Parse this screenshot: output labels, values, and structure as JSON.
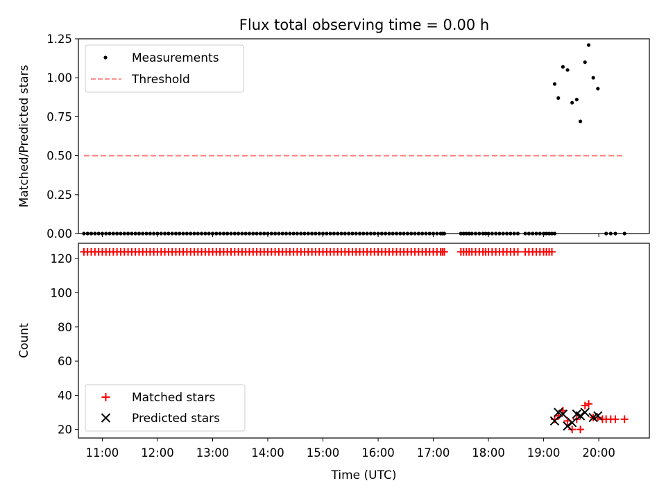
{
  "figure_title": "Flux total observing time = 0.00 h",
  "colors": {
    "measurement": "#000000",
    "threshold": "#ff7f7f",
    "matched": "#ff0000",
    "predicted": "#000000"
  },
  "chart_data": [
    {
      "type": "scatter",
      "title": "Flux total observing time = 0.00 h",
      "xlabel": "",
      "ylabel": "Matched/Predicted stars",
      "xlim": [
        "10:34",
        "20:55"
      ],
      "ylim": [
        0,
        1.25
      ],
      "yticks": [
        "0.00",
        "0.25",
        "0.50",
        "0.75",
        "1.00",
        "1.25"
      ],
      "legend_position": "top-left",
      "legend": [
        "Measurements",
        "Threshold"
      ],
      "threshold": {
        "name": "Threshold",
        "value": 0.5,
        "x_start": "10:40",
        "x_end": "20:28"
      },
      "series": [
        {
          "name": "Measurements",
          "zero_points": [
            "10:40",
            "10:44",
            "10:48",
            "10:52",
            "10:56",
            "11:00",
            "11:04",
            "11:08",
            "11:12",
            "11:16",
            "11:20",
            "11:24",
            "11:28",
            "11:32",
            "11:36",
            "11:40",
            "11:44",
            "11:48",
            "11:52",
            "11:56",
            "12:00",
            "12:04",
            "12:08",
            "12:12",
            "12:16",
            "12:20",
            "12:24",
            "12:28",
            "12:32",
            "12:36",
            "12:40",
            "12:44",
            "12:48",
            "12:52",
            "12:56",
            "13:00",
            "13:04",
            "13:08",
            "13:12",
            "13:16",
            "13:20",
            "13:24",
            "13:28",
            "13:32",
            "13:36",
            "13:40",
            "13:44",
            "13:48",
            "13:52",
            "13:56",
            "14:00",
            "14:04",
            "14:08",
            "14:12",
            "14:16",
            "14:20",
            "14:24",
            "14:28",
            "14:32",
            "14:36",
            "14:40",
            "14:44",
            "14:48",
            "14:52",
            "14:56",
            "15:00",
            "15:04",
            "15:08",
            "15:12",
            "15:16",
            "15:20",
            "15:24",
            "15:28",
            "15:32",
            "15:36",
            "15:40",
            "15:44",
            "15:48",
            "15:52",
            "15:56",
            "16:00",
            "16:04",
            "16:08",
            "16:12",
            "16:16",
            "16:20",
            "16:24",
            "16:28",
            "16:32",
            "16:36",
            "16:40",
            "16:44",
            "16:48",
            "16:52",
            "16:56",
            "17:00",
            "17:04",
            "17:08",
            "17:10",
            "17:12",
            "17:30",
            "17:33",
            "17:36",
            "17:39",
            "17:42",
            "17:46",
            "17:50",
            "17:54",
            "17:57",
            "18:00",
            "18:04",
            "18:08",
            "18:12",
            "18:16",
            "18:20",
            "18:24",
            "18:28",
            "18:32",
            "18:40",
            "18:44",
            "18:48",
            "18:52",
            "18:56",
            "19:00",
            "19:03",
            "19:06",
            "19:09",
            "19:12",
            "20:08",
            "20:13",
            "20:18",
            "20:28"
          ],
          "points": [
            {
              "x": "19:12",
              "y": 0.96
            },
            {
              "x": "19:16",
              "y": 0.87
            },
            {
              "x": "19:21",
              "y": 1.07
            },
            {
              "x": "19:26",
              "y": 1.05
            },
            {
              "x": "19:31",
              "y": 0.84
            },
            {
              "x": "19:36",
              "y": 0.86
            },
            {
              "x": "19:40",
              "y": 0.72
            },
            {
              "x": "19:45",
              "y": 1.1
            },
            {
              "x": "19:49",
              "y": 1.21
            },
            {
              "x": "19:54",
              "y": 1.0
            },
            {
              "x": "19:59",
              "y": 0.93
            }
          ]
        }
      ]
    },
    {
      "type": "scatter",
      "title": "",
      "xlabel": "Time (UTC)",
      "ylabel": "Count",
      "xlim": [
        "10:34",
        "20:55"
      ],
      "ylim": [
        15,
        129
      ],
      "yticks": [
        "20",
        "40",
        "60",
        "80",
        "100",
        "120"
      ],
      "xticks": [
        "11:00",
        "12:00",
        "13:00",
        "14:00",
        "15:00",
        "16:00",
        "17:00",
        "18:00",
        "19:00",
        "20:00"
      ],
      "legend_position": "bottom-left",
      "legend": [
        "Matched stars",
        "Predicted stars"
      ],
      "series": [
        {
          "name": "Matched stars",
          "constant_value": 124,
          "constant_times": [
            "10:40",
            "10:44",
            "10:48",
            "10:52",
            "10:56",
            "11:00",
            "11:04",
            "11:08",
            "11:12",
            "11:16",
            "11:20",
            "11:24",
            "11:28",
            "11:32",
            "11:36",
            "11:40",
            "11:44",
            "11:48",
            "11:52",
            "11:56",
            "12:00",
            "12:04",
            "12:08",
            "12:12",
            "12:16",
            "12:20",
            "12:24",
            "12:28",
            "12:32",
            "12:36",
            "12:40",
            "12:44",
            "12:48",
            "12:52",
            "12:56",
            "13:00",
            "13:04",
            "13:08",
            "13:12",
            "13:16",
            "13:20",
            "13:24",
            "13:28",
            "13:32",
            "13:36",
            "13:40",
            "13:44",
            "13:48",
            "13:52",
            "13:56",
            "14:00",
            "14:04",
            "14:08",
            "14:12",
            "14:16",
            "14:20",
            "14:24",
            "14:28",
            "14:32",
            "14:36",
            "14:40",
            "14:44",
            "14:48",
            "14:52",
            "14:56",
            "15:00",
            "15:04",
            "15:08",
            "15:12",
            "15:16",
            "15:20",
            "15:24",
            "15:28",
            "15:32",
            "15:36",
            "15:40",
            "15:44",
            "15:48",
            "15:52",
            "15:56",
            "16:00",
            "16:04",
            "16:08",
            "16:12",
            "16:16",
            "16:20",
            "16:24",
            "16:28",
            "16:32",
            "16:36",
            "16:40",
            "16:44",
            "16:48",
            "16:52",
            "16:56",
            "17:00",
            "17:04",
            "17:08",
            "17:10",
            "17:12",
            "17:30",
            "17:33",
            "17:36",
            "17:39",
            "17:42",
            "17:46",
            "17:50",
            "17:54",
            "17:57",
            "18:00",
            "18:04",
            "18:08",
            "18:12",
            "18:16",
            "18:20",
            "18:24",
            "18:28",
            "18:32",
            "18:40",
            "18:44",
            "18:48",
            "18:52",
            "18:56",
            "19:00",
            "19:03",
            "19:06",
            "19:09"
          ],
          "points": [
            {
              "x": "19:12",
              "y": 26
            },
            {
              "x": "19:16",
              "y": 28
            },
            {
              "x": "19:21",
              "y": 31
            },
            {
              "x": "19:26",
              "y": 25
            },
            {
              "x": "19:31",
              "y": 20
            },
            {
              "x": "19:36",
              "y": 26
            },
            {
              "x": "19:40",
              "y": 20
            },
            {
              "x": "19:45",
              "y": 34
            },
            {
              "x": "19:49",
              "y": 35
            },
            {
              "x": "19:54",
              "y": 27
            },
            {
              "x": "19:59",
              "y": 27
            },
            {
              "x": "20:04",
              "y": 26
            },
            {
              "x": "20:08",
              "y": 26
            },
            {
              "x": "20:13",
              "y": 26
            },
            {
              "x": "20:18",
              "y": 26
            },
            {
              "x": "20:28",
              "y": 26
            }
          ]
        },
        {
          "name": "Predicted stars",
          "points": [
            {
              "x": "19:12",
              "y": 25
            },
            {
              "x": "19:16",
              "y": 30
            },
            {
              "x": "19:21",
              "y": 29
            },
            {
              "x": "19:26",
              "y": 22
            },
            {
              "x": "19:31",
              "y": 24
            },
            {
              "x": "19:36",
              "y": 29
            },
            {
              "x": "19:40",
              "y": 28
            },
            {
              "x": "19:45",
              "y": 30
            },
            {
              "x": "19:54",
              "y": 27
            },
            {
              "x": "19:59",
              "y": 28
            }
          ]
        }
      ]
    }
  ]
}
